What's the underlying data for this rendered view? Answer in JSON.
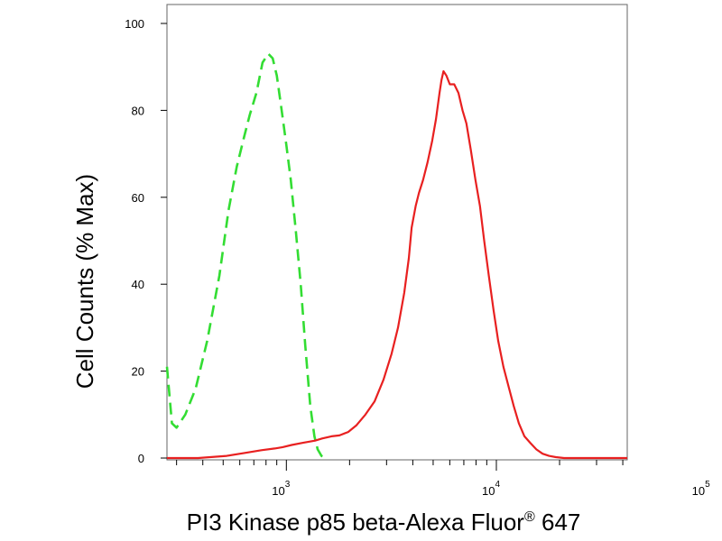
{
  "chart_data": {
    "type": "line",
    "xlabel": "PI3 Kinase p85 beta-Alexa Fluor",
    "xlabel_superscript": "®",
    "xlabel_suffix": " 647",
    "ylabel": "Cell Counts (% Max)",
    "x_scale": "log",
    "xlim": [
      270,
      42000
    ],
    "ylim": [
      0,
      100
    ],
    "grid": false,
    "y_ticks": [
      {
        "value": 0,
        "label": "0"
      },
      {
        "value": 20,
        "label": "20"
      },
      {
        "value": 40,
        "label": "40"
      },
      {
        "value": 60,
        "label": "60"
      },
      {
        "value": 80,
        "label": "80"
      },
      {
        "value": 100,
        "label": "100"
      }
    ],
    "x_ticks": [
      {
        "value": 1000,
        "base": "10",
        "exp": "3"
      },
      {
        "value": 10000,
        "base": "10",
        "exp": "4"
      },
      {
        "value": 100000,
        "base": "10",
        "exp": "5"
      }
    ],
    "series": [
      {
        "color": "#33dd33",
        "style": "dashed",
        "x": [
          270,
          285,
          300,
          330,
          370,
          420,
          480,
          530,
          580,
          630,
          670,
          720,
          770,
          820,
          860,
          900,
          950,
          1000,
          1050,
          1110,
          1170,
          1230,
          1300,
          1360,
          1410,
          1470,
          1540
        ],
        "y": [
          21,
          8,
          7,
          10,
          16,
          27,
          42,
          57,
          67,
          74,
          79,
          84,
          91,
          93,
          92,
          88,
          80,
          72,
          64,
          52,
          40,
          26,
          12,
          5,
          2,
          0.5,
          0
        ]
      },
      {
        "color": "#e82020",
        "style": "solid",
        "x": [
          270,
          380,
          520,
          640,
          760,
          880,
          960,
          1060,
          1200,
          1370,
          1480,
          1640,
          1790,
          1970,
          2150,
          2380,
          2630,
          2900,
          3170,
          3400,
          3640,
          3830,
          3950,
          4130,
          4280,
          4480,
          4700,
          4950,
          5160,
          5360,
          5480,
          5600,
          5780,
          6000,
          6300,
          6600,
          6900,
          7200,
          7550,
          7950,
          8350,
          8750,
          9200,
          9700,
          10200,
          10800,
          11500,
          12100,
          12800,
          13600,
          14500,
          15500,
          16600,
          17800,
          19200,
          21000,
          25000,
          42000
        ],
        "y": [
          0,
          0,
          0.5,
          1.2,
          1.8,
          2.2,
          2.5,
          3,
          3.5,
          4,
          4.5,
          5,
          5.2,
          6,
          7.5,
          10,
          13,
          18,
          24,
          30,
          38,
          46,
          53,
          58,
          61,
          64,
          68,
          73,
          78,
          84,
          87,
          89,
          88,
          86,
          86,
          84,
          80,
          77,
          71,
          64,
          58,
          50,
          42,
          34,
          27,
          21,
          16,
          12,
          8,
          5,
          3.5,
          2,
          1,
          0.5,
          0.2,
          0,
          0,
          0
        ]
      }
    ]
  }
}
